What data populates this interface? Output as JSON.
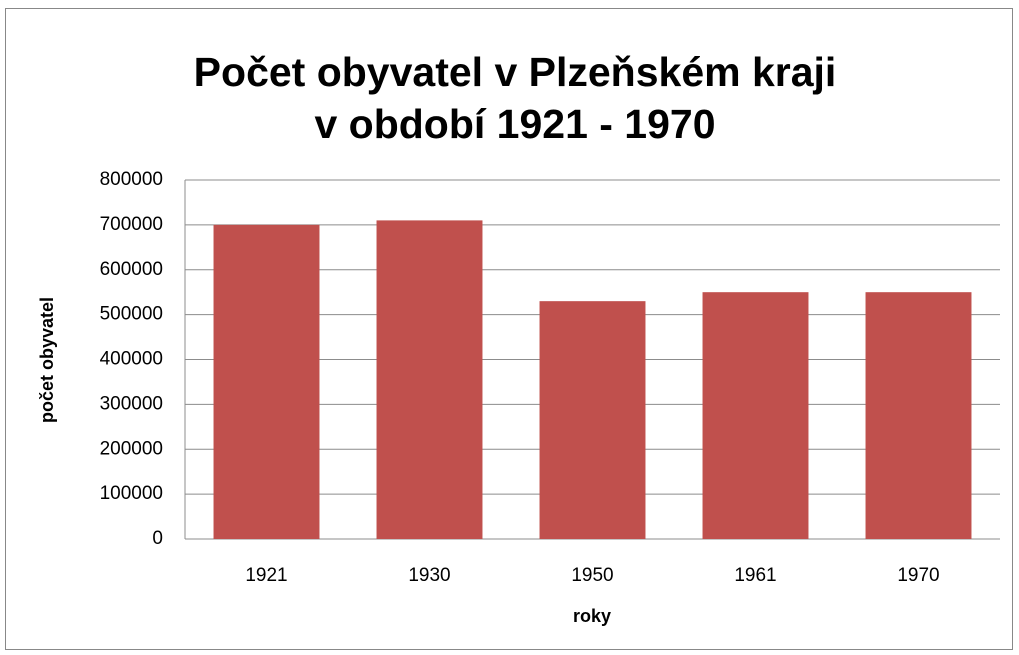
{
  "chart_data": {
    "type": "bar",
    "title": [
      "Počet obyvatel v Plzeňském kraji",
      "v období 1921 - 1970"
    ],
    "x_label": "roky",
    "y_label": "počet obyvatel",
    "categories": [
      "1921",
      "1930",
      "1950",
      "1961",
      "1970"
    ],
    "values": [
      700000,
      710000,
      530000,
      550000,
      550000
    ],
    "color": "#c0504d",
    "ylim": [
      0,
      800000
    ],
    "yticks": [
      0,
      100000,
      200000,
      300000,
      400000,
      500000,
      600000,
      700000,
      800000
    ],
    "grid": true
  }
}
